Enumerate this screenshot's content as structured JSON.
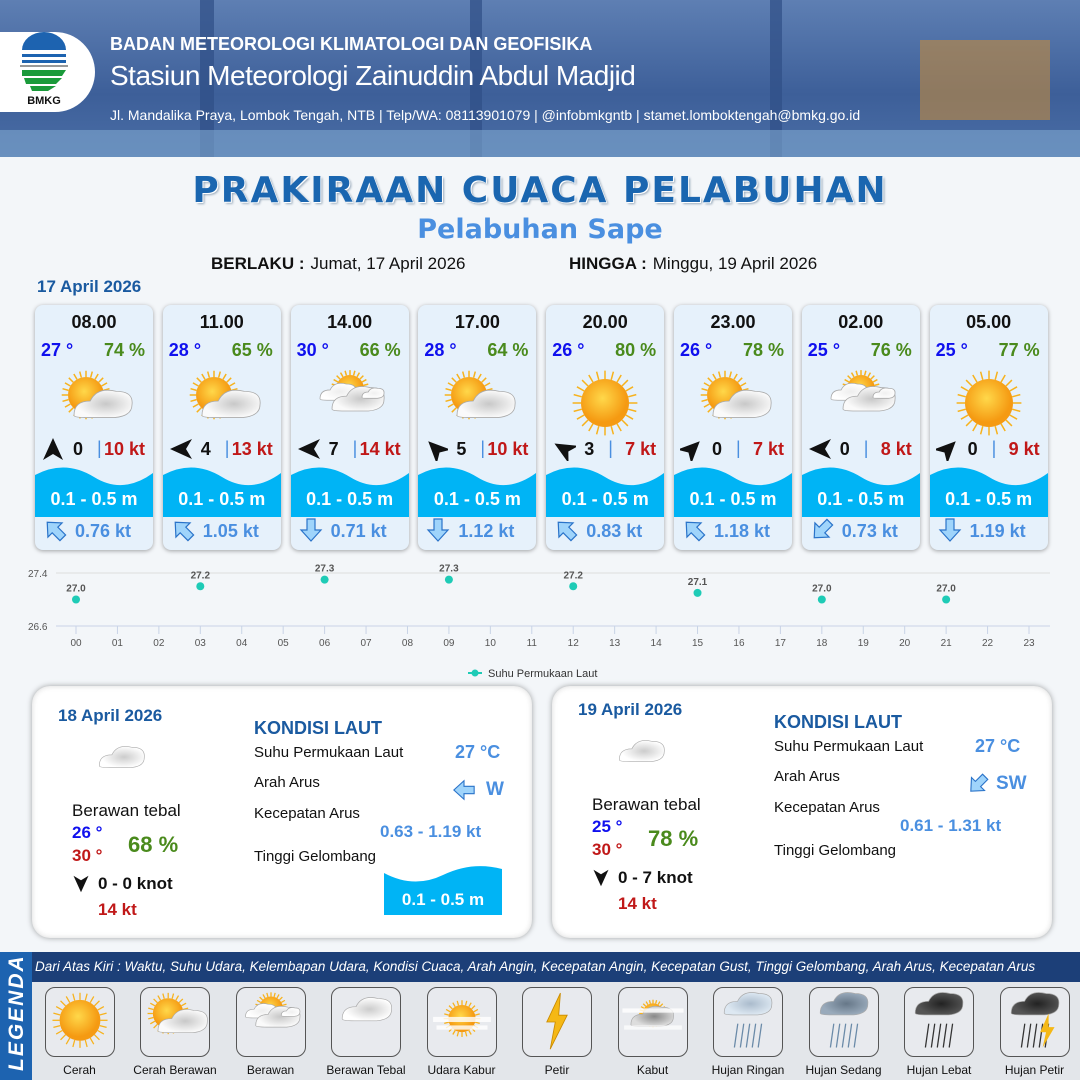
{
  "header": {
    "org": "BADAN METEOROLOGI KLIMATOLOGI DAN GEOFISIKA",
    "station": "Stasiun Meteorologi Zainuddin Abdul Madjid",
    "contact": "Jl. Mandalika Praya, Lombok Tengah, NTB | Telp/WA: 08113901079 | @infobmkgntb | stamet.lomboktengah@bmkg.go.id",
    "logo_text": "BMKG"
  },
  "title": "PRAKIRAAN CUACA PELABUHAN",
  "subtitle": "Pelabuhan Sape",
  "validity": {
    "from_label": "BERLAKU :",
    "from": "Jumat, 17 April 2026",
    "to_label": "HINGGA :",
    "to": "Minggu, 19 April 2026"
  },
  "day1": {
    "date": "17 April 2026",
    "forecasts": [
      {
        "time": "08.00",
        "temp": "27 °",
        "hum": "74 %",
        "weather": "cerah-berawan",
        "wind_dir_deg": 0,
        "wind": "0",
        "gust": "10 kt",
        "wave": "0.1 - 0.5 m",
        "current_dir_deg": 315,
        "current": "0.76 kt"
      },
      {
        "time": "11.00",
        "temp": "28 °",
        "hum": "65 %",
        "weather": "cerah-berawan",
        "wind_dir_deg": 270,
        "wind": "4",
        "gust": "13 kt",
        "wave": "0.1 - 0.5 m",
        "current_dir_deg": 315,
        "current": "1.05 kt"
      },
      {
        "time": "14.00",
        "temp": "30 °",
        "hum": "66 %",
        "weather": "berawan",
        "wind_dir_deg": 270,
        "wind": "7",
        "gust": "14 kt",
        "wave": "0.1 - 0.5 m",
        "current_dir_deg": 180,
        "current": "0.71 kt"
      },
      {
        "time": "17.00",
        "temp": "28 °",
        "hum": "64 %",
        "weather": "cerah-berawan",
        "wind_dir_deg": 315,
        "wind": "5",
        "gust": "10 kt",
        "wave": "0.1 - 0.5 m",
        "current_dir_deg": 180,
        "current": "1.12 kt"
      },
      {
        "time": "20.00",
        "temp": "26 °",
        "hum": "80 %",
        "weather": "cerah",
        "wind_dir_deg": 300,
        "wind": "3",
        "gust": "7 kt",
        "wave": "0.1 - 0.5 m",
        "current_dir_deg": 315,
        "current": "0.83 kt"
      },
      {
        "time": "23.00",
        "temp": "26 °",
        "hum": "78 %",
        "weather": "cerah-berawan",
        "wind_dir_deg": 45,
        "wind": "0",
        "gust": "7 kt",
        "wave": "0.1 - 0.5 m",
        "current_dir_deg": 315,
        "current": "1.18 kt"
      },
      {
        "time": "02.00",
        "temp": "25 °",
        "hum": "76 %",
        "weather": "berawan",
        "wind_dir_deg": 270,
        "wind": "0",
        "gust": "8 kt",
        "wave": "0.1 - 0.5 m",
        "current_dir_deg": 225,
        "current": "0.73 kt"
      },
      {
        "time": "05.00",
        "temp": "25 °",
        "hum": "77 %",
        "weather": "cerah",
        "wind_dir_deg": 45,
        "wind": "0",
        "gust": "9 kt",
        "wave": "0.1 - 0.5 m",
        "current_dir_deg": 180,
        "current": "1.19 kt"
      }
    ]
  },
  "chart_data": {
    "type": "scatter",
    "series": [
      {
        "name": "Suhu Permukaan Laut",
        "x": [
          "00",
          "03",
          "06",
          "09",
          "12",
          "15",
          "18",
          "21"
        ],
        "values": [
          27.0,
          27.2,
          27.3,
          27.3,
          27.2,
          27.1,
          27.0,
          27.0
        ],
        "labels": [
          "27.0",
          "27.2",
          "27.3",
          "27.3",
          "27.2",
          "27.1",
          "27.0",
          "27.0"
        ]
      }
    ],
    "categories": [
      "00",
      "01",
      "02",
      "03",
      "04",
      "05",
      "06",
      "07",
      "08",
      "09",
      "10",
      "11",
      "12",
      "13",
      "14",
      "15",
      "16",
      "17",
      "18",
      "19",
      "20",
      "21",
      "22",
      "23"
    ],
    "yticks": [
      "27.4",
      "26.6"
    ],
    "ylim": [
      26.6,
      27.4
    ],
    "legend": "bottom",
    "color": "#1ecbb6"
  },
  "days": [
    {
      "date": "18 April 2026",
      "weather": "berawan-tebal",
      "condition": "Berawan tebal",
      "tmin": "26 °",
      "tmax": "30 °",
      "hum": "68 %",
      "wind": "0  - 0 knot",
      "gust": "14 kt",
      "sea": {
        "heading": "KONDISI LAUT",
        "sst_label": "Suhu Permukaan Laut",
        "sst": "27 °C",
        "dir_label": "Arah Arus",
        "dir": "W",
        "dir_deg": 270,
        "speed_label": "Kecepatan Arus",
        "speed": "0.63 - 1.19 kt",
        "wave_label": "Tinggi Gelombang",
        "wave": "0.1 - 0.5 m"
      }
    },
    {
      "date": "19 April 2026",
      "weather": "berawan-tebal",
      "condition": "Berawan tebal",
      "tmin": "25 °",
      "tmax": "30 °",
      "hum": "78 %",
      "wind": "0  - 7 knot",
      "gust": "14 kt",
      "sea": {
        "heading": "KONDISI LAUT",
        "sst_label": "Suhu Permukaan Laut",
        "sst": "27 °C",
        "dir_label": "Arah Arus",
        "dir": "SW",
        "dir_deg": 225,
        "speed_label": "Kecepatan Arus",
        "speed": "0.61 - 1.31 kt",
        "wave_label": "Tinggi Gelombang"
      }
    }
  ],
  "legend": {
    "title": "LEGENDA",
    "description": "Dari Atas Kiri : Waktu, Suhu Udara, Kelembapan Udara, Kondisi Cuaca, Arah Angin, Kecepatan Angin, Kecepatan Gust, Tinggi Gelombang, Arah Arus, Kecepatan Arus",
    "items": [
      {
        "label": "Cerah",
        "icon": "cerah"
      },
      {
        "label": "Cerah Berawan",
        "icon": "cerah-berawan"
      },
      {
        "label": "Berawan",
        "icon": "berawan"
      },
      {
        "label": "Berawan Tebal",
        "icon": "berawan-tebal"
      },
      {
        "label": "Udara Kabur",
        "icon": "udara-kabur"
      },
      {
        "label": "Petir",
        "icon": "petir"
      },
      {
        "label": "Kabut",
        "icon": "kabut"
      },
      {
        "label": "Hujan Ringan",
        "icon": "hujan-ringan"
      },
      {
        "label": "Hujan Sedang",
        "icon": "hujan-sedang"
      },
      {
        "label": "Hujan Lebat",
        "icon": "hujan-lebat"
      },
      {
        "label": "Hujan Petir",
        "icon": "hujan-petir"
      }
    ]
  }
}
